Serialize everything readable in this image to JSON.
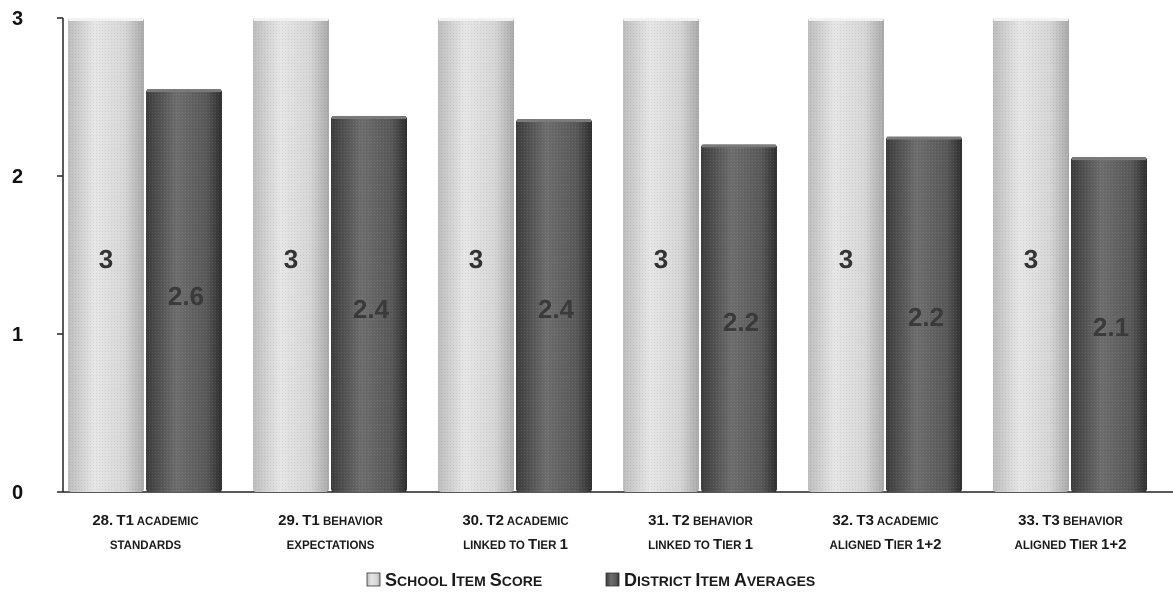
{
  "chart_data": {
    "type": "bar",
    "categories": [
      [
        "28. T1 academic",
        "standards"
      ],
      [
        "29. T1 behavior",
        "expectations"
      ],
      [
        "30. T2 academic",
        "linked to Tier 1"
      ],
      [
        "31. T2 behavior",
        "linked to Tier 1"
      ],
      [
        "32. T3 academic",
        "aligned Tier 1+2"
      ],
      [
        "33. T3 behavior",
        "aligned Tier 1+2"
      ]
    ],
    "series": [
      {
        "name": "School Item Score",
        "values": [
          3,
          3,
          3,
          3,
          3,
          3
        ],
        "labels": [
          "3",
          "3",
          "3",
          "3",
          "3",
          "3"
        ],
        "color": "#d4d4d4"
      },
      {
        "name": "District Item Averages",
        "values": [
          2.55,
          2.38,
          2.36,
          2.2,
          2.25,
          2.12
        ],
        "labels": [
          "2.6",
          "2.4",
          "2.4",
          "2.2",
          "2.2",
          "2.1"
        ],
        "color": "#555555"
      }
    ],
    "yticks": [
      "0",
      "1",
      "2",
      "3"
    ],
    "ylim": [
      0,
      3
    ],
    "legend": "bottom",
    "grid": false
  }
}
